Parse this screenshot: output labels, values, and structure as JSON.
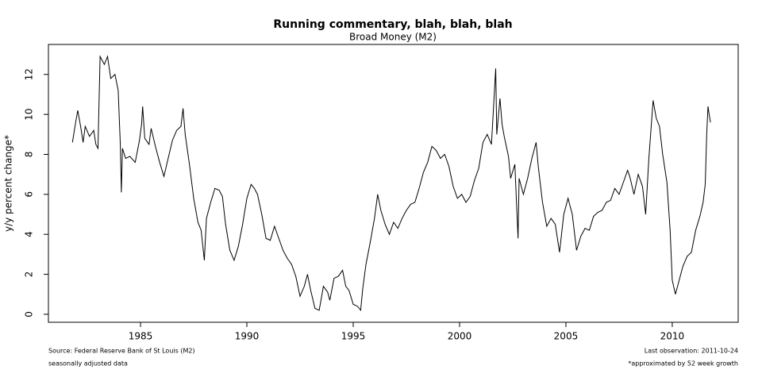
{
  "chart_data": {
    "type": "line",
    "title": "Running commentary, blah, blah, blah",
    "subtitle": "Broad Money (M2)",
    "y_label": "y/y percent change*",
    "source_note": "Source: Federal Reserve Bank of St Louis (M2)",
    "adjustment_note": "seasonally adjusted data",
    "last_observation_note": "Last observation: 2011-10-24",
    "footnote": "*approximated by 52 week growth",
    "color": "#000000",
    "xlim": [
      1980.67,
      2013.1
    ],
    "ylim": [
      -0.4,
      13.5
    ],
    "xticks": [
      1985,
      1990,
      1995,
      2000,
      2005,
      2010
    ],
    "yticks": [
      0,
      2,
      4,
      6,
      8,
      10,
      12
    ],
    "x": [
      1981.8,
      1981.95,
      1982.05,
      1982.2,
      1982.3,
      1982.4,
      1982.6,
      1982.8,
      1982.9,
      1983.0,
      1983.1,
      1983.3,
      1983.45,
      1983.6,
      1983.8,
      1983.95,
      1984.05,
      1984.1,
      1984.15,
      1984.3,
      1984.5,
      1984.75,
      1984.95,
      1985.05,
      1985.1,
      1985.2,
      1985.4,
      1985.5,
      1985.7,
      1985.9,
      1986.1,
      1986.3,
      1986.5,
      1986.7,
      1986.9,
      1987.0,
      1987.1,
      1987.3,
      1987.5,
      1987.7,
      1987.85,
      1988.0,
      1988.1,
      1988.3,
      1988.5,
      1988.7,
      1988.85,
      1989.0,
      1989.2,
      1989.4,
      1989.6,
      1989.8,
      1990.0,
      1990.2,
      1990.35,
      1990.5,
      1990.7,
      1990.9,
      1991.1,
      1991.3,
      1991.5,
      1991.7,
      1991.9,
      1992.1,
      1992.3,
      1992.5,
      1992.7,
      1992.85,
      1993.0,
      1993.2,
      1993.4,
      1993.6,
      1993.8,
      1993.9,
      1994.1,
      1994.3,
      1994.5,
      1994.65,
      1994.8,
      1995.0,
      1995.2,
      1995.35,
      1995.45,
      1995.6,
      1995.8,
      1996.0,
      1996.15,
      1996.3,
      1996.5,
      1996.7,
      1996.9,
      1997.1,
      1997.3,
      1997.5,
      1997.7,
      1997.9,
      1998.1,
      1998.3,
      1998.5,
      1998.7,
      1998.9,
      1999.1,
      1999.3,
      1999.5,
      1999.7,
      1999.9,
      2000.1,
      2000.3,
      2000.5,
      2000.7,
      2000.9,
      2001.1,
      2001.3,
      2001.5,
      2001.7,
      2001.75,
      2001.9,
      2002.0,
      2002.1,
      2002.3,
      2002.4,
      2002.6,
      2002.75,
      2002.8,
      2003.0,
      2003.2,
      2003.4,
      2003.6,
      2003.7,
      2003.9,
      2004.1,
      2004.3,
      2004.5,
      2004.7,
      2004.9,
      2005.1,
      2005.3,
      2005.5,
      2005.7,
      2005.9,
      2006.1,
      2006.3,
      2006.5,
      2006.7,
      2006.9,
      2007.1,
      2007.3,
      2007.5,
      2007.7,
      2007.9,
      2008.0,
      2008.2,
      2008.4,
      2008.6,
      2008.75,
      2008.9,
      2009.1,
      2009.25,
      2009.4,
      2009.55,
      2009.75,
      2009.9,
      2010.0,
      2010.15,
      2010.3,
      2010.5,
      2010.7,
      2010.9,
      2011.1,
      2011.3,
      2011.45,
      2011.55,
      2011.62,
      2011.68,
      2011.75,
      2011.8
    ],
    "values": [
      8.6,
      9.6,
      10.2,
      9.3,
      8.6,
      9.4,
      8.9,
      9.2,
      8.5,
      8.3,
      12.9,
      12.5,
      12.9,
      11.8,
      12.0,
      11.2,
      8.5,
      6.1,
      8.3,
      7.8,
      7.9,
      7.6,
      8.7,
      9.5,
      10.4,
      8.8,
      8.5,
      9.3,
      8.4,
      7.6,
      6.9,
      7.8,
      8.7,
      9.2,
      9.4,
      10.3,
      9.0,
      7.5,
      5.8,
      4.6,
      4.2,
      2.7,
      4.8,
      5.6,
      6.3,
      6.2,
      5.9,
      4.5,
      3.2,
      2.7,
      3.4,
      4.5,
      5.8,
      6.5,
      6.3,
      6.0,
      5.0,
      3.8,
      3.7,
      4.4,
      3.8,
      3.2,
      2.8,
      2.5,
      1.9,
      0.9,
      1.4,
      2.0,
      1.2,
      0.3,
      0.2,
      1.4,
      1.1,
      0.7,
      1.8,
      1.9,
      2.2,
      1.4,
      1.2,
      0.5,
      0.4,
      0.2,
      1.3,
      2.5,
      3.6,
      4.8,
      6.0,
      5.2,
      4.5,
      4.0,
      4.6,
      4.3,
      4.8,
      5.2,
      5.5,
      5.6,
      6.3,
      7.1,
      7.6,
      8.4,
      8.2,
      7.8,
      8.0,
      7.4,
      6.4,
      5.8,
      6.0,
      5.6,
      5.9,
      6.7,
      7.3,
      8.6,
      9.0,
      8.5,
      12.3,
      9.0,
      10.8,
      9.5,
      8.9,
      7.9,
      6.8,
      7.5,
      3.8,
      6.8,
      6.0,
      6.8,
      7.8,
      8.6,
      7.4,
      5.6,
      4.4,
      4.8,
      4.5,
      3.1,
      5.0,
      5.8,
      5.0,
      3.2,
      3.9,
      4.3,
      4.2,
      4.9,
      5.1,
      5.2,
      5.6,
      5.7,
      6.3,
      6.0,
      6.6,
      7.2,
      6.9,
      6.0,
      7.0,
      6.4,
      5.0,
      7.8,
      10.7,
      9.8,
      9.4,
      8.0,
      6.6,
      4.2,
      1.7,
      1.0,
      1.6,
      2.4,
      2.9,
      3.1,
      4.2,
      4.9,
      5.6,
      6.5,
      9.0,
      10.4,
      9.9,
      9.6
    ]
  }
}
